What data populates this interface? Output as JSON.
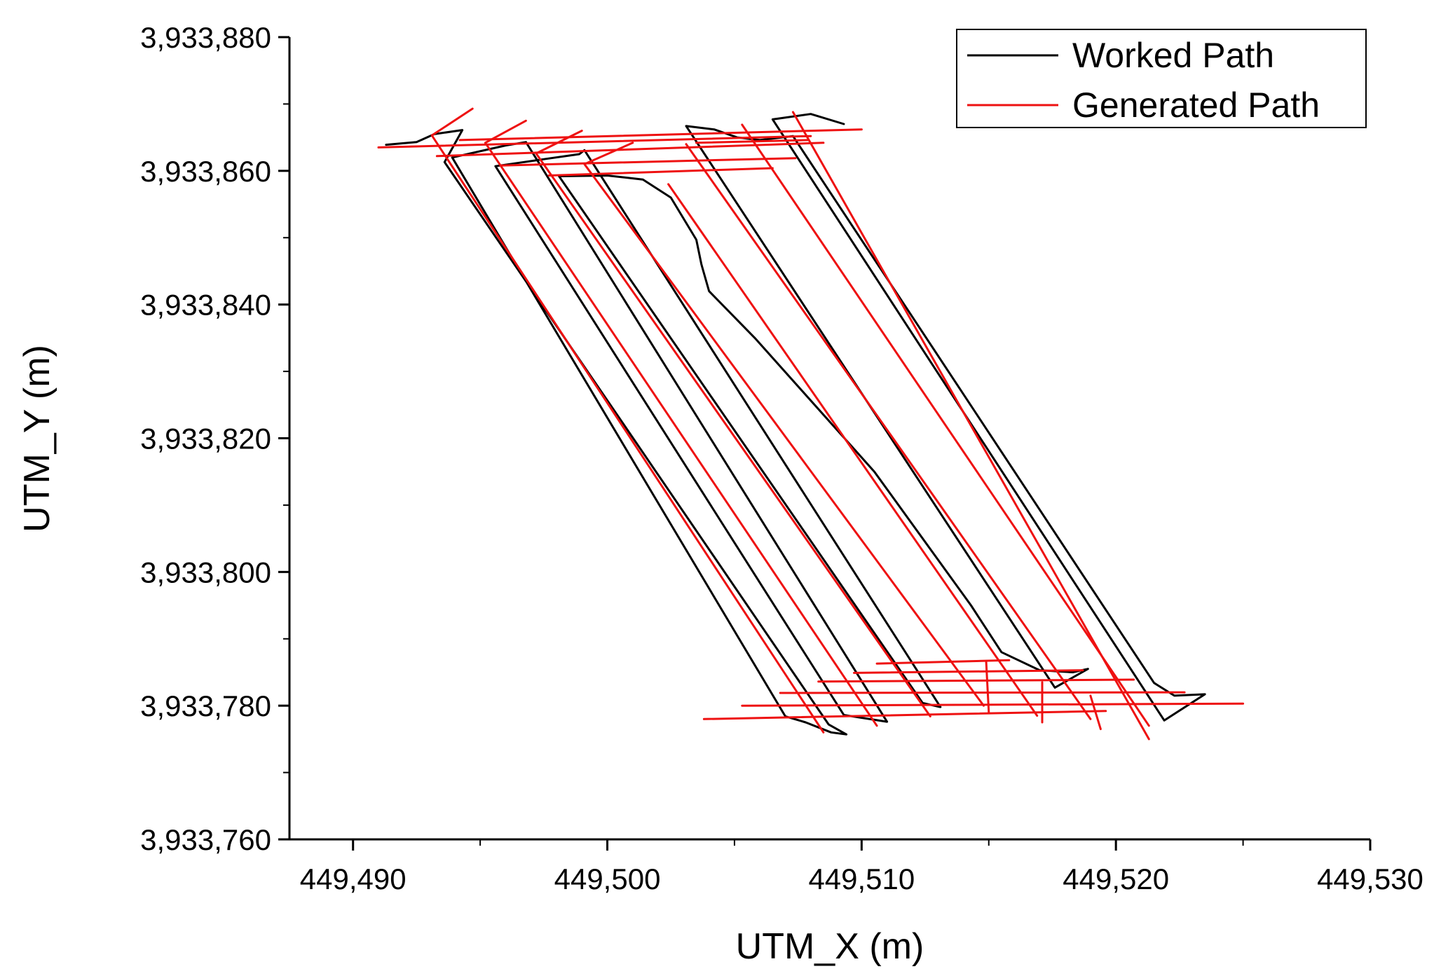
{
  "chart_data": {
    "type": "line",
    "xlabel": "UTM_X (m)",
    "ylabel": "UTM_Y (m)",
    "xlim": [
      449487.5,
      449530
    ],
    "ylim": [
      3933760,
      3933880
    ],
    "x_ticks": [
      449490,
      449500,
      449510,
      449520,
      449530
    ],
    "y_ticks": [
      3933760,
      3933780,
      3933800,
      3933820,
      3933840,
      3933860,
      3933880
    ],
    "x_tick_labels": [
      "449,490",
      "449,500",
      "449,510",
      "449,520",
      "449,530"
    ],
    "y_tick_labels": [
      "3,933,760",
      "3,933,780",
      "3,933,800",
      "3,933,820",
      "3,933,840",
      "3,933,860",
      "3,933,880"
    ],
    "grid": false,
    "legend_position": "top-right",
    "series": [
      {
        "name": "Worked Path",
        "color": "#000000",
        "points": [
          [
            449491.3,
            3933863.9
          ],
          [
            449492.5,
            3933864.3
          ],
          [
            449493.2,
            3933865.5
          ],
          [
            449494.3,
            3933866.1
          ],
          [
            449493.6,
            3933861.3
          ],
          [
            449508.7,
            3933777.2
          ],
          [
            449509.4,
            3933775.7
          ],
          [
            449508.8,
            3933776.0
          ],
          [
            449507.8,
            3933777.5
          ],
          [
            449507.0,
            3933778.4
          ],
          [
            449493.9,
            3933862.0
          ],
          [
            449496.0,
            3933863.8
          ],
          [
            449496.8,
            3933864.3
          ],
          [
            449511.0,
            3933777.6
          ],
          [
            449509.3,
            3933778.6
          ],
          [
            449495.6,
            3933860.7
          ],
          [
            449497.6,
            3933861.8
          ],
          [
            449498.9,
            3933862.5
          ],
          [
            449499.1,
            3933863.1
          ],
          [
            449513.1,
            3933779.8
          ],
          [
            449512.4,
            3933780.4
          ],
          [
            449498.1,
            3933859.2
          ],
          [
            449500.0,
            3933859.3
          ],
          [
            449501.4,
            3933858.7
          ],
          [
            449502.5,
            3933856.0
          ],
          [
            449503.5,
            3933849.7
          ],
          [
            449503.7,
            3933846.0
          ],
          [
            449504.0,
            3933842.0
          ],
          [
            449505.8,
            3933835.0
          ],
          [
            449510.5,
            3933815.0
          ],
          [
            449514.3,
            3933795.0
          ],
          [
            449515.5,
            3933788.0
          ],
          [
            449517.0,
            3933785.3
          ],
          [
            449518.3,
            3933785.0
          ],
          [
            449518.9,
            3933785.5
          ],
          [
            449517.6,
            3933782.7
          ],
          [
            449503.1,
            3933866.7
          ],
          [
            449504.2,
            3933866.2
          ],
          [
            449505.1,
            3933865.0
          ],
          [
            449506.0,
            3933864.6
          ],
          [
            449507.3,
            3933865.2
          ],
          [
            449521.5,
            3933783.4
          ],
          [
            449522.3,
            3933781.5
          ],
          [
            449523.5,
            3933781.7
          ],
          [
            449521.9,
            3933777.8
          ],
          [
            449506.5,
            3933867.7
          ],
          [
            449508.0,
            3933868.5
          ],
          [
            449509.3,
            3933867.0
          ]
        ]
      },
      {
        "name": "Generated Path",
        "color": "#ee1111",
        "segments": [
          [
            [
              449491.0,
              3933863.5
            ],
            [
              449508.0,
              3933865.2
            ]
          ],
          [
            [
              449493.3,
              3933862.2
            ],
            [
              449508.5,
              3933864.2
            ]
          ],
          [
            [
              449495.8,
              3933860.8
            ],
            [
              449507.4,
              3933861.9
            ]
          ],
          [
            [
              449497.7,
              3933859.3
            ],
            [
              449506.5,
              3933860.4
            ]
          ],
          [
            [
              449494.2,
              3933864.6
            ],
            [
              449510.0,
              3933866.2
            ]
          ],
          [
            [
              449503.5,
              3933864.2
            ],
            [
              449507.9,
              3933864.6
            ]
          ],
          [
            [
              449503.8,
              3933778.0
            ],
            [
              449519.6,
              3933779.2
            ]
          ],
          [
            [
              449505.3,
              3933780.0
            ],
            [
              449525.0,
              3933780.3
            ]
          ],
          [
            [
              449506.8,
              3933781.9
            ],
            [
              449522.7,
              3933782.0
            ]
          ],
          [
            [
              449508.3,
              3933783.6
            ],
            [
              449520.7,
              3933783.9
            ]
          ],
          [
            [
              449509.7,
              3933784.9
            ],
            [
              449518.7,
              3933785.3
            ]
          ],
          [
            [
              449510.6,
              3933786.3
            ],
            [
              449515.8,
              3933786.8
            ]
          ],
          [
            [
              449494.7,
              3933869.3
            ],
            [
              449493.1,
              3933865.3
            ],
            [
              449508.5,
              3933776.0
            ]
          ],
          [
            [
              449496.8,
              3933867.5
            ],
            [
              449495.2,
              3933864.2
            ],
            [
              449510.6,
              3933777.0
            ]
          ],
          [
            [
              449499.0,
              3933866.0
            ],
            [
              449497.2,
              3933862.6
            ],
            [
              449512.7,
              3933778.4
            ]
          ],
          [
            [
              449501.0,
              3933864.2
            ],
            [
              449499.1,
              3933861.0
            ],
            [
              449514.8,
              3933780.0
            ]
          ],
          [
            [
              449502.4,
              3933858.0
            ],
            [
              449516.9,
              3933778.5
            ]
          ],
          [
            [
              449503.1,
              3933864.0
            ],
            [
              449519.0,
              3933778.0
            ]
          ],
          [
            [
              449505.3,
              3933866.9
            ],
            [
              449521.3,
              3933777.0
            ]
          ],
          [
            [
              449507.3,
              3933868.8
            ],
            [
              449521.3,
              3933775.0
            ]
          ],
          [
            [
              449514.9,
              3933786.5
            ],
            [
              449515.0,
              3933779.0
            ]
          ],
          [
            [
              449517.1,
              3933783.5
            ],
            [
              449517.1,
              3933777.5
            ]
          ],
          [
            [
              449519.0,
              3933781.5
            ],
            [
              449519.4,
              3933776.5
            ]
          ]
        ]
      }
    ]
  }
}
